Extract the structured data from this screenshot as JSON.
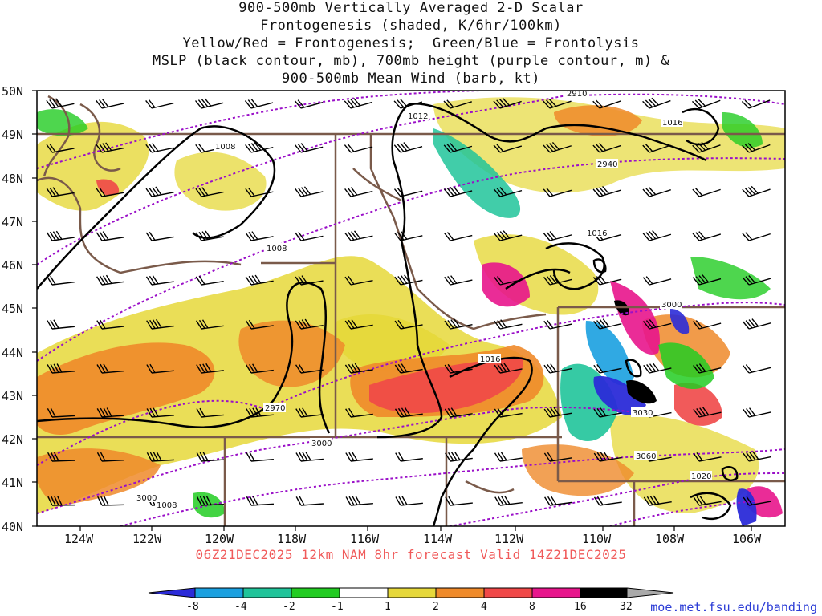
{
  "header": {
    "title_lines": [
      "900-500mb Vertically Averaged 2-D Scalar",
      "Frontogenesis (shaded, K/6hr/100km)",
      "Yellow/Red = Frontogenesis;  Green/Blue = Frontolysis",
      "MSLP (black contour, mb), 700mb height (purple contour, m) &",
      "900-500mb Mean Wind (barb, kt)"
    ]
  },
  "map": {
    "lat_labels": [
      "50N",
      "49N",
      "48N",
      "47N",
      "46N",
      "45N",
      "44N",
      "43N",
      "42N",
      "41N",
      "40N"
    ],
    "lon_labels": [
      "124W",
      "122W",
      "120W",
      "118W",
      "116W",
      "114W",
      "112W",
      "110W",
      "108W",
      "106W"
    ],
    "mslp_labels": [
      "1008",
      "1012",
      "1016",
      "1008",
      "1016",
      "1016",
      "1008",
      "1020"
    ],
    "height_labels": [
      "2910",
      "2940",
      "2970",
      "3000",
      "3000",
      "3030",
      "3060",
      "3000"
    ],
    "colors": {
      "frontolysis_strong": "#2b2bd8",
      "frontolysis_med": "#1aa0e0",
      "frontolysis_weak": "#20c49a",
      "frontolysis_light": "#22cc22",
      "neutral": "#ffffff",
      "frontogenesis_weak": "#e6d83a",
      "frontogenesis_med": "#ef8a2a",
      "frontogenesis_strong": "#f04848",
      "frontogenesis_very": "#e8158c",
      "frontogenesis_extreme": "#000000",
      "height_contour": "#9a0fc8",
      "mslp_contour": "#000000",
      "borders": "#7a5a4a"
    }
  },
  "footer": {
    "valid_line": "06Z21DEC2025 12km NAM 8hr forecast Valid 14Z21DEC2025",
    "credit": "moe.met.fsu.edu/banding"
  },
  "colorbar": {
    "labels": [
      "-8",
      "-4",
      "-2",
      "-1",
      "1",
      "2",
      "4",
      "8",
      "16",
      "32"
    ],
    "colors": [
      "#2b2bd8",
      "#1aa0e0",
      "#20c49a",
      "#22cc22",
      "#ffffff",
      "#e6d83a",
      "#ef8a2a",
      "#f04848",
      "#e8158c",
      "#000000",
      "#aaaaaa"
    ]
  }
}
